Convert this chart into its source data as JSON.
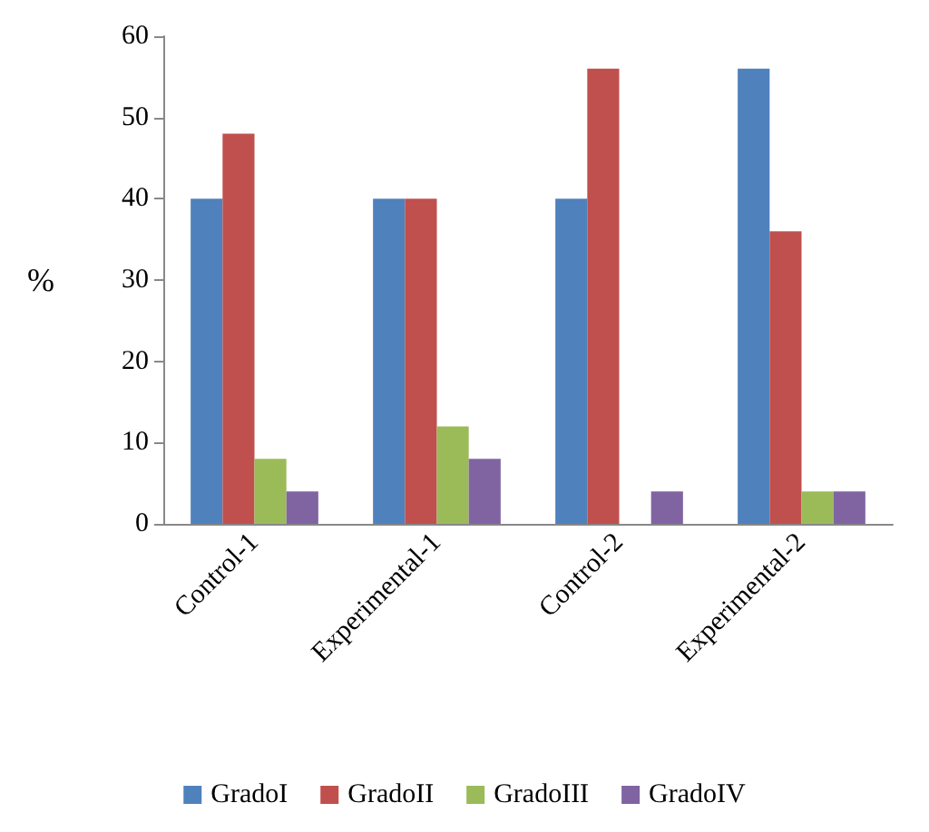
{
  "chart_data": {
    "type": "bar",
    "ylabel": "%",
    "categories": [
      "Control-1",
      "Experimental-1",
      "Control-2",
      "Experimental-2"
    ],
    "series": [
      {
        "name": "GradoI",
        "color": "#4f81bd",
        "values": [
          40,
          40,
          40,
          56
        ]
      },
      {
        "name": "GradoII",
        "color": "#c0504d",
        "values": [
          48,
          40,
          56,
          36
        ]
      },
      {
        "name": "GradoIII",
        "color": "#9bbb59",
        "values": [
          8,
          12,
          0,
          4
        ]
      },
      {
        "name": "GradoIV",
        "color": "#8064a2",
        "values": [
          4,
          8,
          4,
          4
        ]
      }
    ],
    "ylim": [
      0,
      60
    ],
    "yticks": [
      0,
      10,
      20,
      30,
      40,
      50,
      60
    ],
    "grid": false,
    "legend": "bottom"
  }
}
